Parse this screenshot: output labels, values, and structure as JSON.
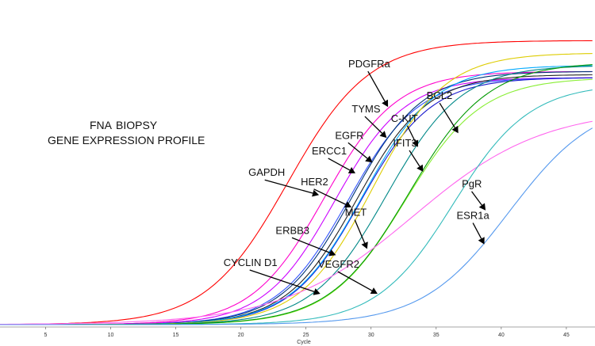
{
  "chart_data": {
    "type": "line",
    "title_line1_a": "FNA",
    "title_line1_b": "BIOPSY",
    "title_line2": "GENE EXPRESSION PROFILE",
    "xlabel": "Cycle",
    "ylabel": "",
    "xlim": [
      1.5,
      47.2
    ],
    "ylim": [
      0,
      1
    ],
    "x_ticks": [
      5,
      10,
      15,
      20,
      25,
      30,
      35,
      40,
      45
    ],
    "grid": false,
    "legend": "none",
    "series": [
      {
        "name": "GAPDH",
        "color": "#ff0000",
        "ct": 23.6,
        "plateau": 0.92,
        "steep": 0.32
      },
      {
        "name": "CYCLIN D1",
        "color": "#ff00cc",
        "ct": 26.4,
        "plateau": 0.82,
        "steep": 0.36
      },
      {
        "name": "ERBB3",
        "color": "#cc00ff",
        "ct": 27.2,
        "plateau": 0.8,
        "steep": 0.37
      },
      {
        "name": "HER2",
        "color": "#3355ff",
        "ct": 28.2,
        "plateau": 0.8,
        "steep": 0.37
      },
      {
        "name": "ERCC1",
        "color": "#003377",
        "ct": 28.5,
        "plateau": 0.82,
        "steep": 0.37
      },
      {
        "name": "EGFR",
        "color": "#222222",
        "ct": 28.9,
        "plateau": 0.81,
        "steep": 0.37
      },
      {
        "name": "PDGFRa",
        "color": "#1a1acc",
        "ct": 29.2,
        "plateau": 0.8,
        "steep": 0.37
      },
      {
        "name": "TYMS",
        "color": "#00aaff",
        "ct": 29.4,
        "plateau": 0.84,
        "steep": 0.36
      },
      {
        "name": "MET",
        "color": "#ddcc00",
        "ct": 30.1,
        "plateau": 0.88,
        "steep": 0.36
      },
      {
        "name": "C-KIT",
        "color": "#008888",
        "ct": 31.2,
        "plateau": 0.84,
        "steep": 0.35
      },
      {
        "name": "IFIT3",
        "color": "#88ee33",
        "ct": 32.6,
        "plateau": 0.8,
        "steep": 0.34
      },
      {
        "name": "VEGFR2",
        "color": "#009900",
        "ct": 32.9,
        "plateau": 0.85,
        "steep": 0.33
      },
      {
        "name": "BCL2",
        "color": "#ff66ee",
        "ct": 33.2,
        "plateau": 0.7,
        "steep": 0.2
      },
      {
        "name": "PgR",
        "color": "#33bbbb",
        "ct": 36.3,
        "plateau": 0.78,
        "steep": 0.34
      },
      {
        "name": "ESR1a",
        "color": "#5599ee",
        "ct": 40.6,
        "plateau": 0.73,
        "steep": 0.3
      }
    ],
    "annotations": [
      {
        "label": "PDGFRa",
        "target_x": 31.3,
        "target_y": 0.705
      },
      {
        "label": "TYMS",
        "target_x": 31.2,
        "target_y": 0.605
      },
      {
        "label": "C-KIT",
        "target_x": 33.6,
        "target_y": 0.575
      },
      {
        "label": "EGFR",
        "target_x": 30.1,
        "target_y": 0.525
      },
      {
        "label": "IFIT3",
        "target_x": 34.0,
        "target_y": 0.495
      },
      {
        "label": "BCL2",
        "target_x": 36.7,
        "target_y": 0.62
      },
      {
        "label": "ERCC1",
        "target_x": 28.8,
        "target_y": 0.49
      },
      {
        "label": "GAPDH",
        "target_x": 26.0,
        "target_y": 0.42
      },
      {
        "label": "HER2",
        "target_x": 28.5,
        "target_y": 0.38
      },
      {
        "label": "PgR",
        "target_x": 38.8,
        "target_y": 0.37
      },
      {
        "label": "ESR1a",
        "target_x": 38.7,
        "target_y": 0.26
      },
      {
        "label": "MET",
        "target_x": 29.7,
        "target_y": 0.245
      },
      {
        "label": "ERBB3",
        "target_x": 27.3,
        "target_y": 0.225
      },
      {
        "label": "VEGFR2",
        "target_x": 30.5,
        "target_y": 0.1
      },
      {
        "label": "CYCLIN D1",
        "target_x": 26.1,
        "target_y": 0.1
      }
    ]
  }
}
